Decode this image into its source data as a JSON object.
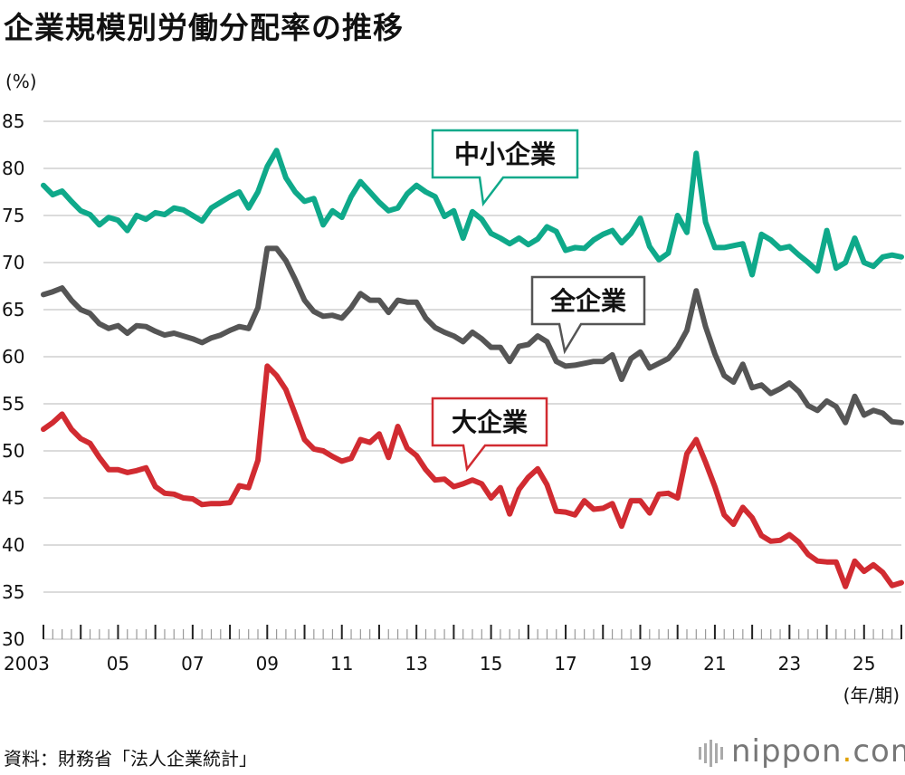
{
  "title": "企業規模別労働分配率の推移",
  "y_unit": "(%)",
  "x_unit": "(年/期)",
  "source": "資料：財務省「法人企業統計」",
  "logo": {
    "name": "nippon",
    "dot": ".",
    "suffix": "com"
  },
  "colors": {
    "sme": "#0fa98a",
    "all": "#555555",
    "large": "#d12b31",
    "grid": "#cfcfcf"
  },
  "chart_data": {
    "type": "line",
    "title": "企業規模別労働分配率の推移",
    "ylabel": "(%)",
    "xlabel": "(年/期)",
    "ylim": [
      30,
      85
    ],
    "yticks": [
      30,
      35,
      40,
      45,
      50,
      55,
      60,
      65,
      70,
      75,
      80,
      85
    ],
    "x_start": "2003Q1",
    "frequency": "quarterly",
    "xtick_labels": [
      "2003",
      "05",
      "07",
      "09",
      "11",
      "13",
      "15",
      "17",
      "19",
      "21",
      "23",
      "25"
    ],
    "series": [
      {
        "key": "sme",
        "name": "中小企業",
        "values": [
          78.2,
          77.2,
          77.6,
          76.5,
          75.5,
          75.1,
          74.0,
          74.8,
          74.5,
          73.4,
          75.0,
          74.6,
          75.3,
          75.1,
          75.8,
          75.6,
          75.0,
          74.4,
          75.8,
          76.4,
          77.0,
          77.5,
          75.8,
          77.5,
          80.2,
          81.9,
          79.0,
          77.5,
          76.5,
          76.8,
          74.0,
          75.5,
          74.8,
          77.0,
          78.6,
          77.5,
          76.4,
          75.5,
          75.8,
          77.3,
          78.2,
          77.5,
          77.0,
          74.9,
          75.5,
          72.6,
          75.4,
          74.6,
          73.1,
          72.6,
          72.0,
          72.6,
          71.9,
          72.5,
          73.8,
          73.3,
          71.3,
          71.6,
          71.5,
          72.4,
          73.0,
          73.4,
          72.1,
          73.1,
          74.7,
          71.7,
          70.3,
          71.0,
          75.0,
          73.2,
          81.6,
          74.3,
          71.6,
          71.6,
          71.8,
          72.0,
          68.7,
          73.0,
          72.4,
          71.5,
          71.7,
          70.8,
          70.0,
          69.1,
          73.4,
          69.4,
          70.0,
          72.6,
          70.0,
          69.6,
          70.6,
          70.8,
          70.6
        ]
      },
      {
        "key": "all",
        "name": "全企業",
        "values": [
          66.6,
          66.9,
          67.3,
          66.0,
          65.0,
          64.6,
          63.5,
          63.0,
          63.3,
          62.5,
          63.3,
          63.2,
          62.7,
          62.3,
          62.5,
          62.2,
          61.9,
          61.5,
          62.0,
          62.3,
          62.8,
          63.2,
          63.0,
          65.2,
          71.5,
          71.5,
          70.2,
          68.2,
          66.0,
          64.8,
          64.3,
          64.4,
          64.1,
          65.2,
          66.7,
          66.0,
          66.0,
          64.7,
          66.0,
          65.8,
          65.8,
          64.1,
          63.1,
          62.6,
          62.2,
          61.6,
          62.6,
          61.9,
          61.0,
          61.0,
          59.5,
          61.1,
          61.3,
          62.2,
          61.6,
          59.5,
          59.0,
          59.1,
          59.3,
          59.5,
          59.5,
          60.2,
          57.6,
          59.8,
          60.5,
          58.8,
          59.3,
          59.8,
          61.0,
          62.8,
          67.0,
          63.2,
          60.3,
          58.0,
          57.3,
          59.2,
          56.7,
          57.0,
          56.1,
          56.6,
          57.2,
          56.3,
          54.8,
          54.3,
          55.3,
          54.7,
          53.0,
          55.8,
          53.8,
          54.3,
          54.0,
          53.1,
          53.0
        ]
      },
      {
        "key": "large",
        "name": "大企業",
        "values": [
          52.3,
          53.0,
          53.9,
          52.3,
          51.3,
          50.8,
          49.3,
          48.0,
          48.0,
          47.7,
          47.9,
          48.2,
          46.2,
          45.5,
          45.4,
          45.0,
          44.9,
          44.3,
          44.4,
          44.4,
          44.5,
          46.3,
          46.1,
          49.0,
          59.0,
          58.0,
          56.5,
          53.9,
          51.2,
          50.2,
          50.0,
          49.4,
          48.9,
          49.2,
          51.2,
          50.9,
          51.8,
          49.3,
          52.6,
          50.3,
          49.5,
          48.0,
          46.9,
          47.0,
          46.2,
          46.5,
          46.9,
          46.5,
          45.0,
          46.1,
          43.3,
          45.9,
          47.2,
          48.1,
          46.4,
          43.6,
          43.5,
          43.2,
          44.7,
          43.8,
          43.9,
          44.4,
          42.0,
          44.7,
          44.7,
          43.4,
          45.4,
          45.5,
          45.0,
          49.7,
          51.2,
          48.8,
          46.2,
          43.2,
          42.2,
          44.0,
          42.9,
          41.0,
          40.4,
          40.5,
          41.1,
          40.3,
          39.0,
          38.3,
          38.2,
          38.2,
          35.6,
          38.3,
          37.2,
          37.9,
          37.1,
          35.7,
          36.0
        ]
      }
    ],
    "annotations": [
      {
        "series": "sme",
        "label": "中小企業"
      },
      {
        "series": "all",
        "label": "全企業"
      },
      {
        "series": "large",
        "label": "大企業"
      }
    ]
  }
}
